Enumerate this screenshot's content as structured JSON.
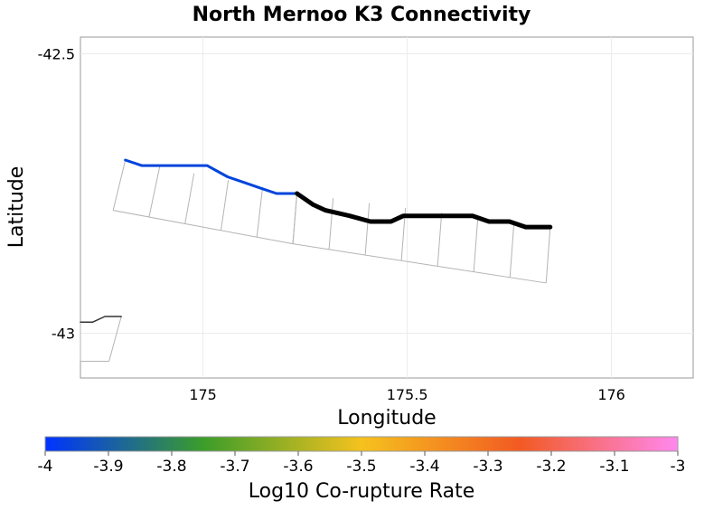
{
  "chart_data": {
    "type": "map",
    "title": "North Mernoo K3 Connectivity",
    "xlabel": "Longitude",
    "ylabel": "Latitude",
    "xlim": [
      174.7,
      176.2
    ],
    "ylim": [
      -43.08,
      -42.47
    ],
    "x_ticks": [
      {
        "value": 175,
        "label": "175"
      },
      {
        "value": 175.5,
        "label": "175.5"
      },
      {
        "value": 176,
        "label": "176"
      }
    ],
    "y_ticks": [
      {
        "value": -42.5,
        "label": "-42.5"
      },
      {
        "value": -43,
        "label": "-43"
      }
    ],
    "grid": true,
    "colorbar": {
      "label": "Log10 Co-rupture Rate",
      "min": -4,
      "max": -3,
      "ticks": [
        "-4",
        "-3.9",
        "-3.8",
        "-3.7",
        "-3.6",
        "-3.5",
        "-3.4",
        "-3.3",
        "-3.2",
        "-3.1",
        "-3"
      ],
      "colors": [
        "#0033ff",
        "#3b9d2a",
        "#f5c21e",
        "#f25a22",
        "#ff88ee"
      ]
    },
    "series": [
      {
        "color": "#0044dd",
        "points": [
          [
            174.81,
            -42.69
          ],
          [
            174.85,
            -42.7
          ],
          [
            174.89,
            -42.7
          ],
          [
            174.94,
            -42.7
          ],
          [
            174.97,
            -42.7
          ],
          [
            175.01,
            -42.7
          ],
          [
            175.06,
            -42.72
          ],
          [
            175.1,
            -42.73
          ],
          [
            175.14,
            -42.74
          ],
          [
            175.18,
            -42.75
          ],
          [
            175.23,
            -42.75
          ]
        ]
      },
      {
        "color": "#000000",
        "points": [
          [
            175.23,
            -42.75
          ],
          [
            175.27,
            -42.77
          ],
          [
            175.3,
            -42.78
          ],
          [
            175.36,
            -42.79
          ],
          [
            175.41,
            -42.8
          ],
          [
            175.46,
            -42.8
          ],
          [
            175.49,
            -42.79
          ],
          [
            175.53,
            -42.79
          ],
          [
            175.58,
            -42.79
          ],
          [
            175.62,
            -42.79
          ],
          [
            175.66,
            -42.79
          ],
          [
            175.7,
            -42.8
          ],
          [
            175.75,
            -42.8
          ],
          [
            175.79,
            -42.81
          ],
          [
            175.83,
            -42.81
          ],
          [
            175.85,
            -42.81
          ]
        ]
      },
      {
        "color": "#333333",
        "points": [
          [
            174.7,
            -42.98
          ],
          [
            174.73,
            -42.98
          ],
          [
            174.76,
            -42.97
          ],
          [
            174.8,
            -42.97
          ]
        ]
      }
    ],
    "subsection_outlines": [
      {
        "top": [
          [
            174.81,
            -42.69
          ],
          [
            175.23,
            -42.75
          ]
        ],
        "bottom": [
          [
            174.78,
            -42.78
          ],
          [
            175.22,
            -42.84
          ]
        ]
      },
      {
        "top": [
          [
            175.23,
            -42.75
          ],
          [
            175.85,
            -42.81
          ]
        ],
        "bottom": [
          [
            175.22,
            -42.84
          ],
          [
            175.84,
            -42.91
          ]
        ]
      },
      {
        "top": [
          [
            174.7,
            -42.98
          ],
          [
            174.8,
            -42.97
          ]
        ],
        "bottom": [
          [
            174.7,
            -43.05
          ],
          [
            174.77,
            -43.05
          ]
        ]
      }
    ]
  }
}
